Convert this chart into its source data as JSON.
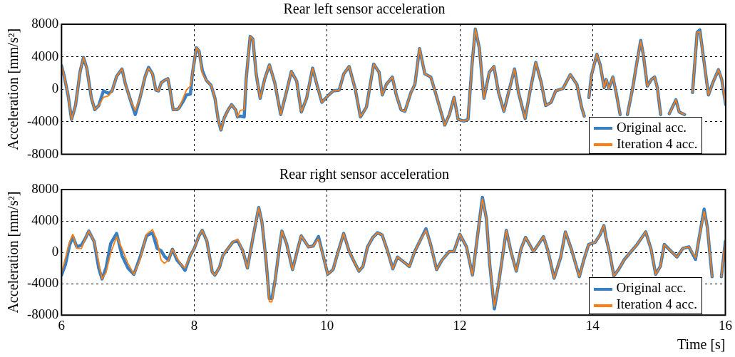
{
  "chart_data": [
    {
      "type": "line",
      "title": "Rear left sensor acceleration",
      "ylabel": "Acceleration [mm/s²]",
      "xlim": [
        6,
        16
      ],
      "xticks": [
        6,
        8,
        10,
        12,
        14,
        16
      ],
      "ylim": [
        -8000,
        8000
      ],
      "yticks": [
        -8000,
        -4000,
        0,
        4000,
        8000
      ],
      "grid": true,
      "legend": "bottom right",
      "tick_labels": "y",
      "marker": "none",
      "x": [
        6.0,
        6.04,
        6.1,
        6.15,
        6.21,
        6.28,
        6.33,
        6.38,
        6.45,
        6.5,
        6.56,
        6.63,
        6.71,
        6.76,
        6.83,
        6.91,
        6.96,
        7.04,
        7.11,
        7.18,
        7.26,
        7.31,
        7.37,
        7.42,
        7.46,
        7.5,
        7.55,
        7.6,
        7.63,
        7.68,
        7.74,
        7.77,
        7.83,
        7.88,
        7.94,
        7.97,
        8.03,
        8.07,
        8.12,
        8.18,
        8.25,
        8.31,
        8.36,
        8.4,
        8.45,
        8.51,
        8.56,
        8.62,
        8.65,
        8.69,
        8.75,
        8.78,
        8.84,
        8.88,
        8.93,
        8.99,
        9.06,
        9.13,
        9.21,
        9.3,
        9.39,
        9.46,
        9.54,
        9.61,
        9.69,
        9.78,
        9.85,
        9.92,
        10.01,
        10.09,
        10.18,
        10.25,
        10.33,
        10.42,
        10.5,
        10.59,
        10.7,
        10.78,
        10.83,
        10.89,
        10.98,
        11.04,
        11.11,
        11.17,
        11.26,
        11.32,
        11.39,
        11.47,
        11.56,
        11.64,
        11.77,
        11.84,
        11.91,
        11.97,
        12.06,
        12.12,
        12.18,
        12.23,
        12.29,
        12.36,
        12.44,
        12.51,
        12.58,
        12.66,
        12.73,
        12.82,
        12.88,
        12.98,
        13.05,
        13.14,
        13.22,
        13.29,
        13.37,
        13.44,
        13.55,
        13.66,
        13.76,
        13.83,
        13.87,
        13.9,
        13.94,
        13.98,
        14.06,
        14.11,
        14.17,
        14.2,
        14.24,
        14.3,
        14.35,
        14.41,
        14.46,
        14.52,
        14.6,
        14.65,
        14.72,
        14.76,
        14.82,
        14.88,
        14.93,
        14.97,
        15.02,
        15.08,
        15.15,
        15.25,
        15.3,
        15.38,
        15.42,
        15.5,
        15.57,
        15.61,
        15.66,
        15.74,
        15.81,
        15.89,
        15.94,
        16.0
      ],
      "series": [
        {
          "name": "Original acc.",
          "color": "#3a7fc2",
          "values": [
            2900,
            1600,
            -800,
            -3700,
            -2000,
            2200,
            3900,
            2600,
            -1100,
            -2500,
            -2000,
            -200,
            -500,
            -200,
            1600,
            2500,
            700,
            -1400,
            -3100,
            -1100,
            1600,
            2700,
            1900,
            -100,
            -200,
            800,
            1100,
            1300,
            100,
            -2500,
            -2500,
            -2300,
            -1500,
            -700,
            -600,
            1900,
            5100,
            4700,
            2300,
            1100,
            500,
            -1100,
            -3800,
            -5000,
            -3500,
            -2500,
            -1900,
            -2500,
            -3400,
            -3300,
            -3400,
            1300,
            6500,
            6200,
            1900,
            -1100,
            1300,
            3000,
            800,
            -3100,
            -200,
            2200,
            1000,
            -2800,
            -1100,
            2600,
            400,
            -1600,
            -800,
            -200,
            -100,
            1900,
            2800,
            100,
            -3400,
            -2200,
            3100,
            2100,
            -700,
            600,
            1500,
            -700,
            -2500,
            -2700,
            -400,
            600,
            5000,
            1900,
            1500,
            -700,
            -4400,
            -3100,
            -1000,
            -3700,
            -3900,
            -3700,
            3000,
            7400,
            5100,
            -1100,
            2100,
            2800,
            -400,
            -2700,
            -400,
            2500,
            -400,
            -3600,
            -400,
            3300,
            900,
            -2000,
            -1600,
            -200,
            100,
            1800,
            600,
            -2200,
            -3300,
            null,
            -1000,
            1800,
            4300,
            3000,
            200,
            1200,
            100,
            1500,
            -400,
            -3100,
            null,
            -3100,
            200,
            2700,
            6000,
            4200,
            400,
            1200,
            1500,
            200,
            -3100,
            null,
            -3000,
            -1300,
            -2800,
            -3100,
            null,
            -400,
            7000,
            7300,
            4200,
            -700,
            900,
            2400,
            1200,
            -1900
          ]
        },
        {
          "name": "Iteration 4 acc.",
          "color": "#ff7f0e",
          "values": [
            2900,
            1600,
            -800,
            -3700,
            -2000,
            2200,
            3900,
            2600,
            -1100,
            -2500,
            -2000,
            -1000,
            -800,
            -200,
            1600,
            2500,
            700,
            -1400,
            -2600,
            -1100,
            1600,
            2600,
            1900,
            -100,
            -200,
            800,
            1100,
            1300,
            100,
            -2500,
            -2500,
            -2300,
            -1100,
            -100,
            400,
            1900,
            5100,
            4700,
            1900,
            1100,
            500,
            -1100,
            -3800,
            -5000,
            -3500,
            -2500,
            -1900,
            -2500,
            -3400,
            -2600,
            -2500,
            1300,
            6500,
            6200,
            1900,
            -1100,
            1300,
            3000,
            800,
            -3100,
            -200,
            2200,
            1000,
            -2800,
            -1100,
            2600,
            400,
            -1600,
            -800,
            -200,
            -100,
            1900,
            2800,
            100,
            -3400,
            -2200,
            3100,
            2100,
            -700,
            600,
            1500,
            -700,
            -2500,
            -2700,
            -400,
            600,
            5000,
            1900,
            1500,
            -700,
            -4400,
            -3100,
            -1000,
            -3700,
            -3900,
            -3700,
            3000,
            7400,
            5100,
            -1100,
            2100,
            2800,
            -400,
            -2700,
            -400,
            2500,
            -400,
            -3600,
            -400,
            3300,
            900,
            -2000,
            -1600,
            -200,
            100,
            1800,
            600,
            -2200,
            -3300,
            null,
            -1000,
            1800,
            4300,
            3000,
            200,
            1200,
            100,
            1500,
            -400,
            -3100,
            null,
            -3100,
            200,
            2700,
            5900,
            4200,
            400,
            1200,
            1500,
            200,
            -3100,
            null,
            -3000,
            -1300,
            -2800,
            -3100,
            null,
            -400,
            7000,
            7100,
            4200,
            -700,
            900,
            2400,
            1200,
            -1900
          ]
        }
      ]
    },
    {
      "type": "line",
      "title": "Rear right sensor acceleration",
      "xlabel": "Time [s]",
      "ylabel": "Acceleration [mm/s²]",
      "xlim": [
        6,
        16
      ],
      "xticks": [
        6,
        8,
        10,
        12,
        14,
        16
      ],
      "ylim": [
        -8000,
        8000
      ],
      "yticks": [
        -8000,
        -4000,
        0,
        4000,
        8000
      ],
      "grid": true,
      "legend": "bottom right",
      "marker": "none",
      "x": [
        6.0,
        6.06,
        6.12,
        6.17,
        6.23,
        6.3,
        6.36,
        6.41,
        6.49,
        6.56,
        6.61,
        6.67,
        6.74,
        6.83,
        6.91,
        7.0,
        7.09,
        7.18,
        7.28,
        7.37,
        7.44,
        7.5,
        7.55,
        7.61,
        7.67,
        7.74,
        7.81,
        7.86,
        7.94,
        8.0,
        8.07,
        8.12,
        8.19,
        8.27,
        8.31,
        8.38,
        8.43,
        8.51,
        8.58,
        8.65,
        8.73,
        8.8,
        8.88,
        8.97,
        9.02,
        9.08,
        9.13,
        9.17,
        9.22,
        9.28,
        9.32,
        9.39,
        9.48,
        9.56,
        9.61,
        9.72,
        9.79,
        9.87,
        9.94,
        10.01,
        10.09,
        10.16,
        10.25,
        10.33,
        10.39,
        10.48,
        10.54,
        10.61,
        10.69,
        10.76,
        10.83,
        10.91,
        10.99,
        11.06,
        11.15,
        11.24,
        11.32,
        11.39,
        11.49,
        11.56,
        11.65,
        11.73,
        11.84,
        11.91,
        12.0,
        12.1,
        12.19,
        12.25,
        12.34,
        12.4,
        12.45,
        12.52,
        12.58,
        12.7,
        12.77,
        12.85,
        12.92,
        12.99,
        13.11,
        13.26,
        13.33,
        13.42,
        13.52,
        13.59,
        13.68,
        13.8,
        13.87,
        13.94,
        14.04,
        14.11,
        14.17,
        14.2,
        14.26,
        14.32,
        14.39,
        14.48,
        14.58,
        14.67,
        14.8,
        14.88,
        14.95,
        15.02,
        15.08,
        15.15,
        15.27,
        15.36,
        15.45,
        15.55,
        15.6,
        15.68,
        15.73,
        15.8,
        15.87,
        15.94,
        16.0
      ],
      "series": [
        {
          "name": "Original acc.",
          "color": "#3a7fc2",
          "values": [
            -2900,
            -1500,
            900,
            2000,
            700,
            900,
            1800,
            2700,
            1400,
            -2000,
            -3400,
            -2000,
            1100,
            2400,
            -400,
            -2000,
            -2800,
            -700,
            2100,
            2500,
            500,
            200,
            -500,
            -1000,
            400,
            -1000,
            -1700,
            -2300,
            -400,
            500,
            2100,
            2800,
            1400,
            -2500,
            -2900,
            -1900,
            -400,
            500,
            1300,
            1500,
            200,
            -2000,
            1700,
            5700,
            3800,
            -1000,
            -5900,
            -5900,
            -3400,
            500,
            2700,
            1100,
            -2200,
            500,
            2100,
            700,
            800,
            2000,
            -400,
            -2800,
            -2200,
            -100,
            2400,
            200,
            -900,
            -2400,
            -1800,
            700,
            1900,
            2500,
            2200,
            200,
            -2100,
            -600,
            -1200,
            -1800,
            100,
            1300,
            3000,
            1000,
            -2200,
            -1000,
            100,
            100,
            2300,
            700,
            -2900,
            1000,
            7000,
            4300,
            -1500,
            -7200,
            -4200,
            2800,
            100,
            -2400,
            400,
            1900,
            100,
            2000,
            100,
            -3300,
            -600,
            2600,
            400,
            -3100,
            -900,
            1000,
            1300,
            2200,
            3400,
            1900,
            -200,
            -3000,
            -2200,
            -900,
            100,
            1000,
            2600,
            400,
            -2800,
            -1800,
            1000,
            400,
            -600,
            500,
            700,
            -900,
            1600,
            5500,
            3100,
            -3100,
            null,
            -3100,
            1400
          ]
        },
        {
          "name": "Iteration 4 acc.",
          "color": "#ff7f0e",
          "values": [
            -2600,
            -700,
            1300,
            2300,
            500,
            500,
            1800,
            2700,
            1400,
            -1300,
            -3400,
            -2600,
            -100,
            2000,
            500,
            -1400,
            -2800,
            -1000,
            2300,
            2900,
            1500,
            -1000,
            -1400,
            -1000,
            400,
            -700,
            -1700,
            -2000,
            -400,
            500,
            2100,
            2800,
            1400,
            -2500,
            -2900,
            -1900,
            -400,
            500,
            1300,
            1700,
            200,
            -2000,
            1700,
            5700,
            3800,
            -1000,
            -6300,
            -6300,
            -3400,
            500,
            2700,
            1100,
            -2200,
            500,
            2100,
            700,
            800,
            1700,
            -400,
            -2800,
            -2200,
            -100,
            2400,
            200,
            -900,
            -2400,
            -1800,
            700,
            1900,
            2500,
            2200,
            200,
            -2100,
            -600,
            -1200,
            -1800,
            100,
            1300,
            2800,
            1000,
            -2200,
            -1000,
            100,
            100,
            2300,
            700,
            -2900,
            1000,
            6800,
            4300,
            -1500,
            -6900,
            -4200,
            2800,
            100,
            -2400,
            400,
            1900,
            100,
            2000,
            100,
            -3300,
            -600,
            2600,
            400,
            -3100,
            -900,
            1000,
            1300,
            2200,
            3400,
            1900,
            -200,
            -3000,
            -2200,
            -900,
            100,
            1000,
            2600,
            400,
            -2800,
            -1800,
            1000,
            400,
            -600,
            500,
            700,
            -700,
            1600,
            5200,
            3100,
            -3100,
            null,
            -3100,
            1400
          ]
        }
      ]
    }
  ]
}
